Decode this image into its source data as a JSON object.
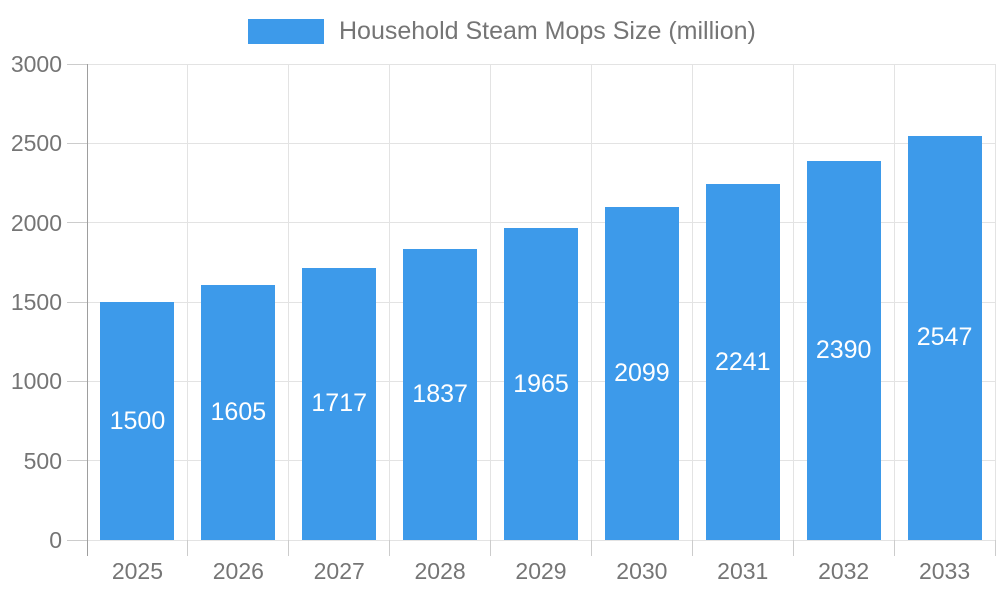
{
  "legend": {
    "label": "Household Steam Mops Size (million)",
    "swatch_color": "#3d9aea"
  },
  "chart_data": {
    "type": "bar",
    "title": "Household Steam Mops Size (million)",
    "categories": [
      "2025",
      "2026",
      "2027",
      "2028",
      "2029",
      "2030",
      "2031",
      "2032",
      "2033"
    ],
    "values": [
      1500,
      1605,
      1717,
      1837,
      1965,
      2099,
      2241,
      2390,
      2547
    ],
    "series": [
      {
        "name": "Household Steam Mops Size (million)",
        "values": [
          1500,
          1605,
          1717,
          1837,
          1965,
          2099,
          2241,
          2390,
          2547
        ]
      }
    ],
    "xlabel": "",
    "ylabel": "",
    "ylim": [
      0,
      3000
    ],
    "yticks": [
      0,
      500,
      1000,
      1500,
      2000,
      2500,
      3000
    ],
    "grid": true,
    "legend_position": "top",
    "value_labels": "inside-center-white",
    "colors": {
      "bar": "#3d9aea",
      "grid": "#e3e3e3",
      "axis_line": "#9e9e9e",
      "tick": "#cccccc",
      "axis_text": "#757575",
      "value_text": "#ffffff",
      "background": "#ffffff"
    }
  }
}
